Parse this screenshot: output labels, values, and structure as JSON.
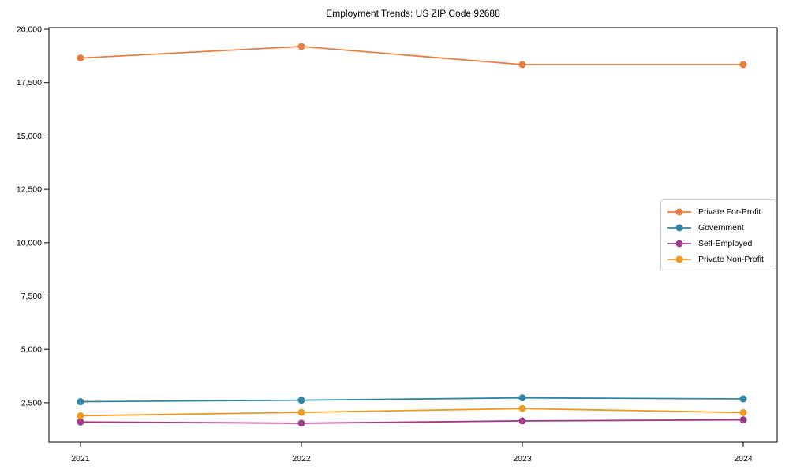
{
  "chart_data": {
    "type": "line",
    "title": "Employment Trends: US ZIP Code 92688",
    "categories": [
      "2021",
      "2022",
      "2023",
      "2024"
    ],
    "series": [
      {
        "name": "Private For-Profit",
        "color": "#E87D3E",
        "values": [
          18650,
          19190,
          18340,
          18340
        ]
      },
      {
        "name": "Government",
        "color": "#3186A5",
        "values": [
          2550,
          2620,
          2730,
          2680
        ]
      },
      {
        "name": "Self-Employed",
        "color": "#A23B8A",
        "values": [
          1600,
          1540,
          1650,
          1700
        ]
      },
      {
        "name": "Private Non-Profit",
        "color": "#F0991F",
        "values": [
          1890,
          2050,
          2230,
          2040
        ]
      }
    ],
    "xlabel": "",
    "ylabel": "",
    "ylim": [
      650,
      20075
    ],
    "yticks": [
      2500,
      5000,
      7500,
      10000,
      12500,
      15000,
      17500,
      20000
    ],
    "grid": false,
    "legend_position": "right-middle",
    "axis_color": "#000000",
    "tick_label_color": "#000000"
  }
}
